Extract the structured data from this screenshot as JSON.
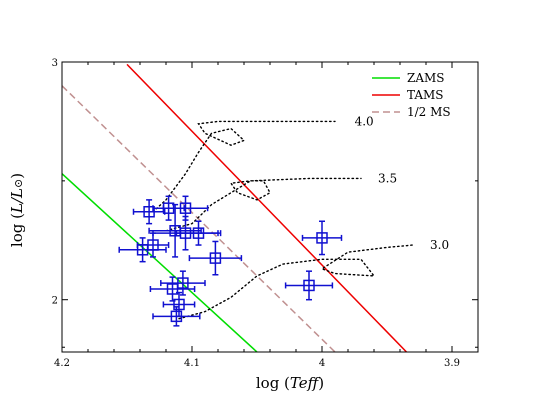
{
  "chart_data": {
    "type": "scatter",
    "title": "",
    "xlabel_prefix": "log (",
    "xlabel_italic": "T",
    "xlabel_sub": "eff",
    "xlabel_suffix": ")",
    "ylabel_prefix": "log (",
    "ylabel_italic": "L/L",
    "ylabel_sun": "⊙",
    "ylabel_suffix": ")",
    "x_reversed": true,
    "xlim": [
      4.2,
      3.88
    ],
    "ylim": [
      1.78,
      3.0
    ],
    "x_ticks": [
      {
        "v": 4.2,
        "label": "4.2"
      },
      {
        "v": 4.1,
        "label": "4.1"
      },
      {
        "v": 4.0,
        "label": "4"
      },
      {
        "v": 3.9,
        "label": "3.9"
      }
    ],
    "y_ticks": [
      {
        "v": 2.0,
        "label": "2"
      },
      {
        "v": 3.0,
        "label": "3"
      }
    ],
    "grid": false,
    "legend": {
      "position": "top-right",
      "entries": [
        {
          "label": "ZAMS",
          "color": "#00dd00",
          "style": "solid"
        },
        {
          "label": "TAMS",
          "color": "#ee0000",
          "style": "solid"
        },
        {
          "label": "1/2 MS",
          "color": "#c09090",
          "style": "dashed"
        }
      ]
    },
    "lines": [
      {
        "name": "ZAMS",
        "color": "#00dd00",
        "style": "solid",
        "points": [
          [
            4.2,
            2.53
          ],
          [
            4.05,
            1.78
          ]
        ]
      },
      {
        "name": "TAMS",
        "color": "#ee0000",
        "style": "solid",
        "points": [
          [
            4.15,
            2.99
          ],
          [
            3.935,
            1.78
          ]
        ]
      },
      {
        "name": "1/2 MS",
        "color": "#c09090",
        "style": "dashed",
        "points": [
          [
            4.2,
            2.9
          ],
          [
            3.99,
            1.78
          ]
        ]
      }
    ],
    "tracks": [
      {
        "label": "4.0",
        "label_at": [
          3.978,
          2.75
        ],
        "points": [
          [
            4.13,
            2.37
          ],
          [
            4.12,
            2.42
          ],
          [
            4.105,
            2.53
          ],
          [
            4.095,
            2.62
          ],
          [
            4.085,
            2.7
          ],
          [
            4.07,
            2.72
          ],
          [
            4.06,
            2.67
          ],
          [
            4.07,
            2.65
          ],
          [
            4.09,
            2.7
          ],
          [
            4.095,
            2.74
          ],
          [
            4.08,
            2.75
          ],
          [
            4.04,
            2.75
          ],
          [
            3.99,
            2.75
          ]
        ]
      },
      {
        "label": "3.5",
        "label_at": [
          3.96,
          2.51
        ],
        "points": [
          [
            4.12,
            2.29
          ],
          [
            4.1,
            2.32
          ],
          [
            4.085,
            2.4
          ],
          [
            4.07,
            2.45
          ],
          [
            4.055,
            2.5
          ],
          [
            4.045,
            2.5
          ],
          [
            4.04,
            2.45
          ],
          [
            4.05,
            2.42
          ],
          [
            4.065,
            2.45
          ],
          [
            4.07,
            2.49
          ],
          [
            4.055,
            2.5
          ],
          [
            4.01,
            2.51
          ],
          [
            3.97,
            2.51
          ]
        ]
      },
      {
        "label": "3.0",
        "label_at": [
          3.92,
          2.23
        ],
        "points": [
          [
            4.11,
            1.92
          ],
          [
            4.09,
            1.95
          ],
          [
            4.07,
            2.01
          ],
          [
            4.05,
            2.1
          ],
          [
            4.03,
            2.15
          ],
          [
            4.0,
            2.17
          ],
          [
            3.97,
            2.17
          ],
          [
            3.96,
            2.1
          ],
          [
            3.99,
            2.11
          ],
          [
            4.0,
            2.13
          ],
          [
            3.98,
            2.2
          ],
          [
            3.95,
            2.22
          ],
          [
            3.93,
            2.23
          ]
        ]
      }
    ],
    "points": [
      {
        "x": 4.133,
        "y": 2.37,
        "xerr": 0.012,
        "yerr": 0.05
      },
      {
        "x": 4.118,
        "y": 2.385,
        "xerr": 0.012,
        "yerr": 0.05
      },
      {
        "x": 4.105,
        "y": 2.385,
        "xerr": 0.017,
        "yerr": 0.05
      },
      {
        "x": 4.113,
        "y": 2.29,
        "xerr": 0.02,
        "yerr": 0.11
      },
      {
        "x": 4.105,
        "y": 2.28,
        "xerr": 0.025,
        "yerr": 0.07
      },
      {
        "x": 4.095,
        "y": 2.28,
        "xerr": 0.017,
        "yerr": 0.05
      },
      {
        "x": 4.13,
        "y": 2.23,
        "xerr": 0.012,
        "yerr": 0.05
      },
      {
        "x": 4.138,
        "y": 2.21,
        "xerr": 0.018,
        "yerr": 0.05
      },
      {
        "x": 4.082,
        "y": 2.175,
        "xerr": 0.02,
        "yerr": 0.07
      },
      {
        "x": 4.115,
        "y": 2.045,
        "xerr": 0.017,
        "yerr": 0.05
      },
      {
        "x": 4.107,
        "y": 2.07,
        "xerr": 0.017,
        "yerr": 0.05
      },
      {
        "x": 4.11,
        "y": 1.98,
        "xerr": 0.012,
        "yerr": 0.05
      },
      {
        "x": 4.112,
        "y": 1.93,
        "xerr": 0.018,
        "yerr": 0.04
      },
      {
        "x": 4.01,
        "y": 2.06,
        "xerr": 0.018,
        "yerr": 0.06
      },
      {
        "x": 4.0,
        "y": 2.26,
        "xerr": 0.015,
        "yerr": 0.07
      }
    ],
    "point_color": "#1010d0"
  }
}
